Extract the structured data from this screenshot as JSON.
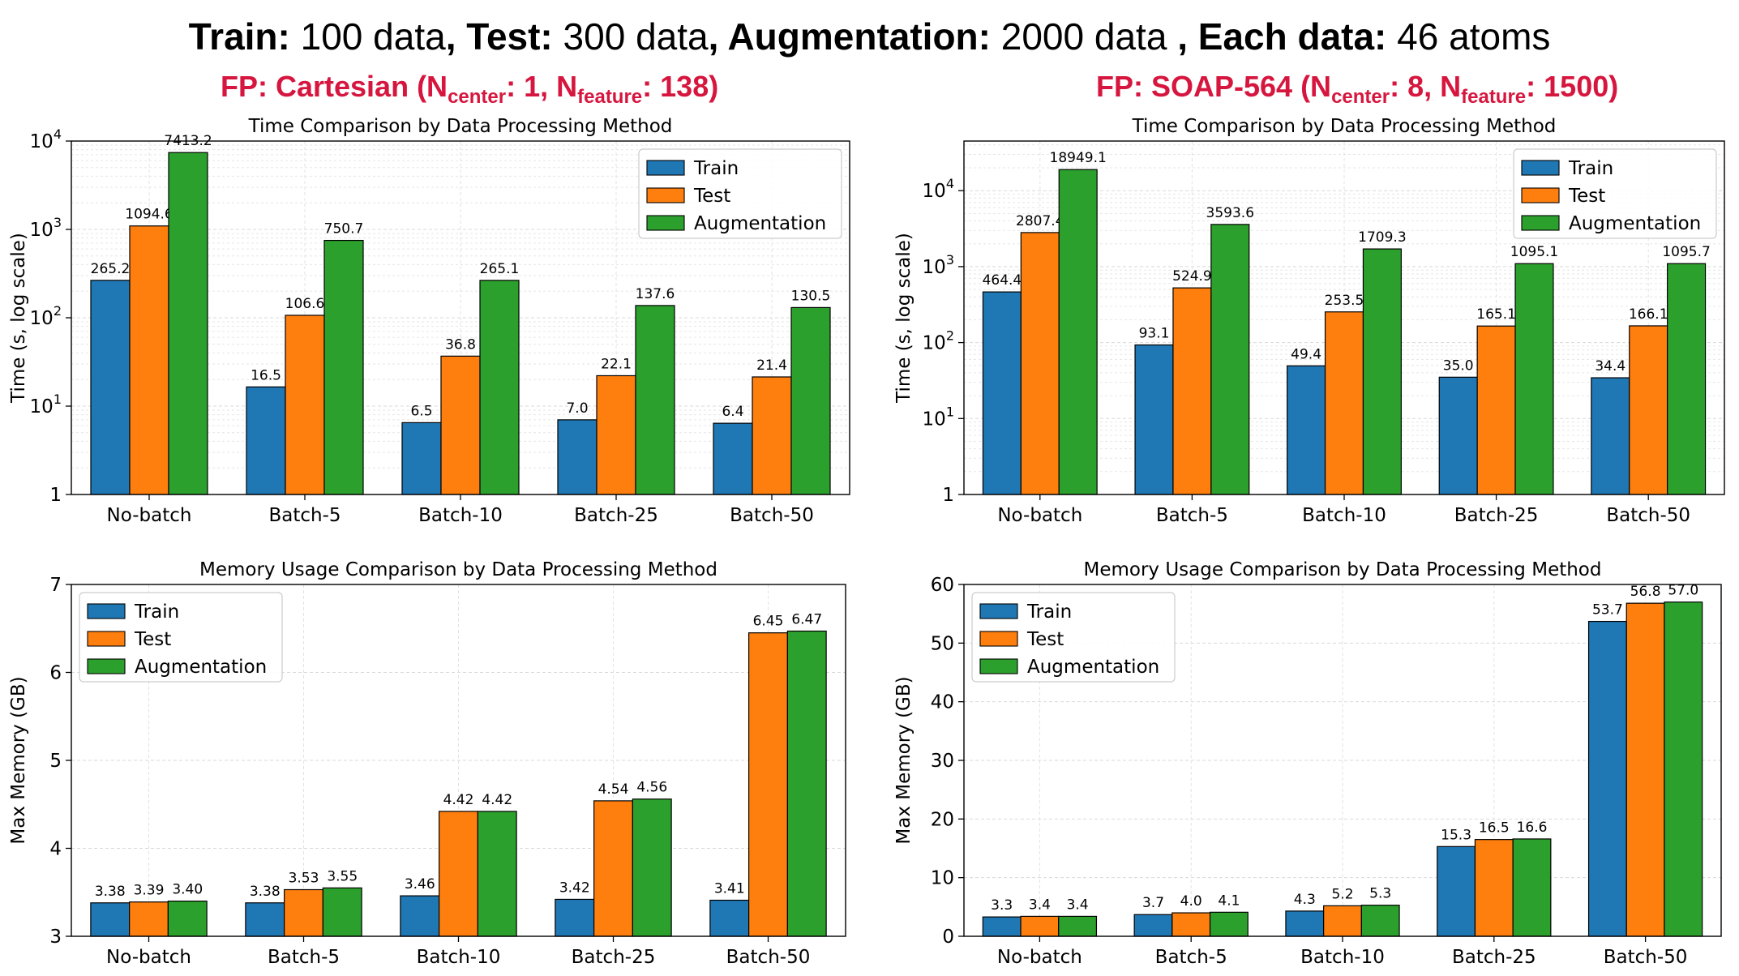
{
  "header": {
    "segments": [
      {
        "text": "Train:",
        "bold": true
      },
      {
        "text": " 100 data",
        "bold": false
      },
      {
        "text": ", Test:",
        "bold": true
      },
      {
        "text": " 300 data",
        "bold": false
      },
      {
        "text": ", Augmentation:",
        "bold": true
      },
      {
        "text": " 2000 data ",
        "bold": false
      },
      {
        "text": ", Each data:",
        "bold": true
      },
      {
        "text": " 46 atoms",
        "bold": false
      }
    ],
    "fp_left": {
      "prefix": "FP: Cartesian (N",
      "sub1": "center",
      "mid": ": 1, N",
      "sub2": "feature",
      "suffix": ": 138)"
    },
    "fp_right": {
      "prefix": "FP: SOAP-564 (N",
      "sub1": "center",
      "mid": ": 8, N",
      "sub2": "feature",
      "suffix": ": 1500)"
    }
  },
  "colors": {
    "train": "#1f77b4",
    "test": "#ff7f0e",
    "augmentation": "#2ca02c",
    "fp_label": "#d6163e"
  },
  "chart_data": [
    {
      "type": "bar",
      "title": "Time Comparison by Data Processing Method",
      "ylabel": "Time (s, log scale)",
      "yscale": "log",
      "ylim": [
        1,
        10000
      ],
      "yticks": [
        1,
        10,
        100,
        1000,
        10000
      ],
      "ytick_labels": [
        {
          "base": "1",
          "exp": ""
        },
        {
          "base": "10",
          "exp": "1"
        },
        {
          "base": "10",
          "exp": "2"
        },
        {
          "base": "10",
          "exp": "3"
        },
        {
          "base": "10",
          "exp": "4"
        }
      ],
      "categories": [
        "No-batch",
        "Batch-5",
        "Batch-10",
        "Batch-25",
        "Batch-50"
      ],
      "series": [
        {
          "name": "Train",
          "values": [
            265.2,
            16.5,
            6.5,
            7.0,
            6.4
          ],
          "labels": [
            "265.2",
            "16.5",
            "6.5",
            "7.0",
            "6.4"
          ]
        },
        {
          "name": "Test",
          "values": [
            1094.6,
            106.6,
            36.8,
            22.1,
            21.4
          ],
          "labels": [
            "1094.6",
            "106.6",
            "36.8",
            "22.1",
            "21.4"
          ]
        },
        {
          "name": "Augmentation",
          "values": [
            7413.2,
            750.7,
            265.1,
            137.6,
            130.5
          ],
          "labels": [
            "7413.2",
            "750.7",
            "265.1",
            "137.6",
            "130.5"
          ]
        }
      ],
      "grid": true,
      "legend": "upper right"
    },
    {
      "type": "bar",
      "title": "Time Comparison by Data Processing Method",
      "ylabel": "Time (s, log scale)",
      "yscale": "log",
      "ylim": [
        1,
        45000
      ],
      "yticks": [
        1,
        10,
        100,
        1000,
        10000
      ],
      "ytick_labels": [
        {
          "base": "1",
          "exp": ""
        },
        {
          "base": "10",
          "exp": "1"
        },
        {
          "base": "10",
          "exp": "2"
        },
        {
          "base": "10",
          "exp": "3"
        },
        {
          "base": "10",
          "exp": "4"
        }
      ],
      "categories": [
        "No-batch",
        "Batch-5",
        "Batch-10",
        "Batch-25",
        "Batch-50"
      ],
      "series": [
        {
          "name": "Train",
          "values": [
            464.4,
            93.1,
            49.4,
            35.0,
            34.4
          ],
          "labels": [
            "464.4",
            "93.1",
            "49.4",
            "35.0",
            "34.4"
          ]
        },
        {
          "name": "Test",
          "values": [
            2807.4,
            524.9,
            253.5,
            165.1,
            166.1
          ],
          "labels": [
            "2807.4",
            "524.9",
            "253.5",
            "165.1",
            "166.1"
          ]
        },
        {
          "name": "Augmentation",
          "values": [
            18949.1,
            3593.6,
            1709.3,
            1095.1,
            1095.7
          ],
          "labels": [
            "18949.1",
            "3593.6",
            "1709.3",
            "1095.1",
            "1095.7"
          ]
        }
      ],
      "grid": true,
      "legend": "upper right"
    },
    {
      "type": "bar",
      "title": "Memory Usage Comparison by Data Processing Method",
      "ylabel": "Max Memory (GB)",
      "yscale": "linear",
      "ylim": [
        3,
        7
      ],
      "yticks": [
        3,
        4,
        5,
        6,
        7
      ],
      "ytick_labels": [
        {
          "base": "3",
          "exp": ""
        },
        {
          "base": "4",
          "exp": ""
        },
        {
          "base": "5",
          "exp": ""
        },
        {
          "base": "6",
          "exp": ""
        },
        {
          "base": "7",
          "exp": ""
        }
      ],
      "categories": [
        "No-batch",
        "Batch-5",
        "Batch-10",
        "Batch-25",
        "Batch-50"
      ],
      "series": [
        {
          "name": "Train",
          "values": [
            3.38,
            3.38,
            3.46,
            3.42,
            3.41
          ],
          "labels": [
            "3.38",
            "3.38",
            "3.46",
            "3.42",
            "3.41"
          ]
        },
        {
          "name": "Test",
          "values": [
            3.39,
            3.53,
            4.42,
            4.54,
            6.45
          ],
          "labels": [
            "3.39",
            "3.53",
            "4.42",
            "4.54",
            "6.45"
          ]
        },
        {
          "name": "Augmentation",
          "values": [
            3.4,
            3.55,
            4.42,
            4.56,
            6.47
          ],
          "labels": [
            "3.40",
            "3.55",
            "4.42",
            "4.56",
            "6.47"
          ]
        }
      ],
      "grid": true,
      "legend": "upper left"
    },
    {
      "type": "bar",
      "title": "Memory Usage Comparison by Data Processing Method",
      "ylabel": "Max Memory (GB)",
      "yscale": "linear",
      "ylim": [
        0,
        60
      ],
      "yticks": [
        0,
        10,
        20,
        30,
        40,
        50,
        60
      ],
      "ytick_labels": [
        {
          "base": "0",
          "exp": ""
        },
        {
          "base": "10",
          "exp": ""
        },
        {
          "base": "20",
          "exp": ""
        },
        {
          "base": "30",
          "exp": ""
        },
        {
          "base": "40",
          "exp": ""
        },
        {
          "base": "50",
          "exp": ""
        },
        {
          "base": "60",
          "exp": ""
        }
      ],
      "categories": [
        "No-batch",
        "Batch-5",
        "Batch-10",
        "Batch-25",
        "Batch-50"
      ],
      "series": [
        {
          "name": "Train",
          "values": [
            3.3,
            3.7,
            4.3,
            15.3,
            53.7
          ],
          "labels": [
            "3.3",
            "3.7",
            "4.3",
            "15.3",
            "53.7"
          ]
        },
        {
          "name": "Test",
          "values": [
            3.4,
            4.0,
            5.2,
            16.5,
            56.8
          ],
          "labels": [
            "3.4",
            "4.0",
            "5.2",
            "16.5",
            "56.8"
          ]
        },
        {
          "name": "Augmentation",
          "values": [
            3.4,
            4.1,
            5.3,
            16.6,
            57.0
          ],
          "labels": [
            "3.4",
            "4.1",
            "5.3",
            "16.6",
            "57.0"
          ]
        }
      ],
      "grid": true,
      "legend": "upper left"
    }
  ]
}
